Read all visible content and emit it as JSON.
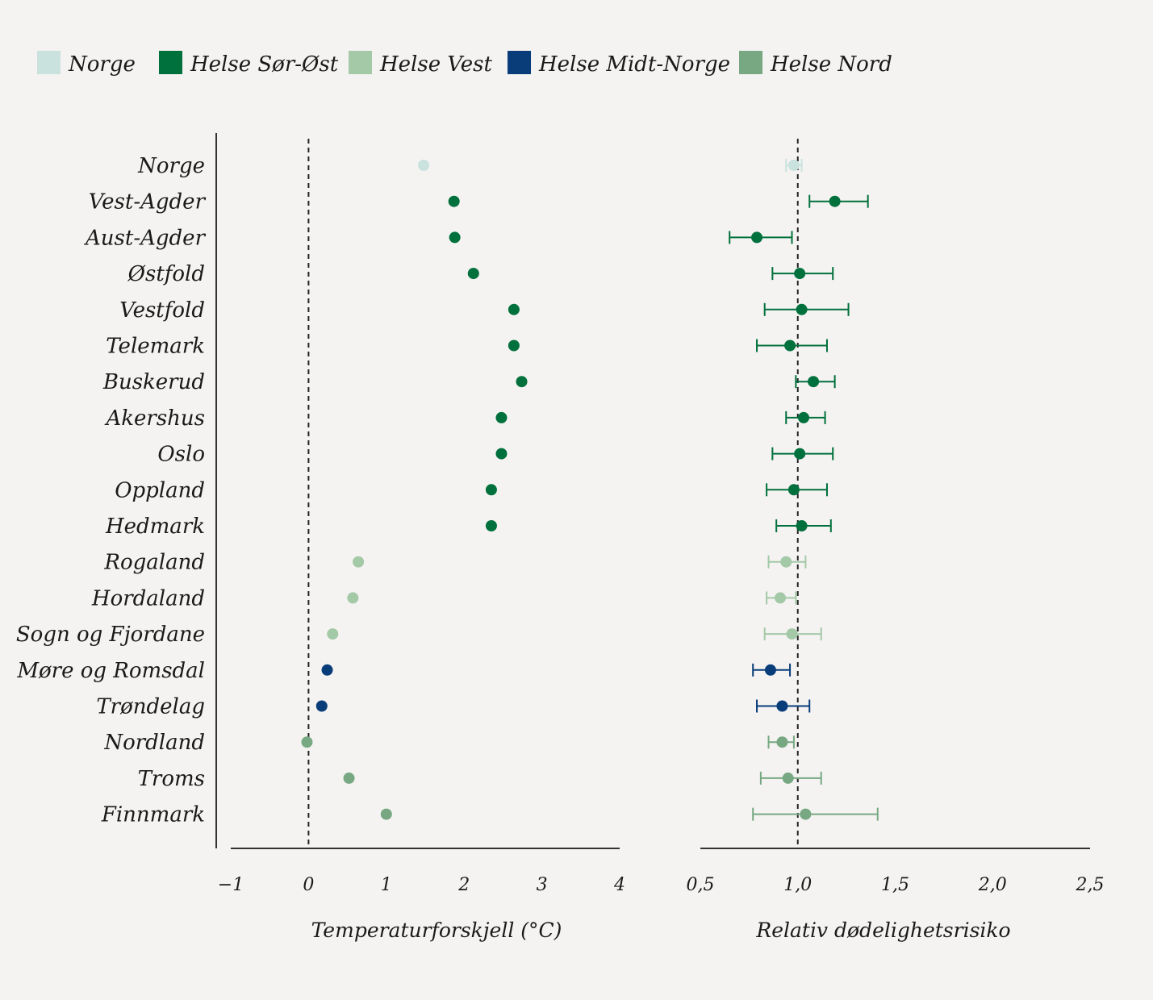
{
  "colors": {
    "Norge": "#c9e2de",
    "Helse Sør-Øst": "#00703c",
    "Helse Vest": "#a3c9a7",
    "Helse Midt-Norge": "#083d7a",
    "Helse Nord": "#77a882"
  },
  "chart_data": [
    {
      "type": "scatter",
      "legend": [
        "Norge",
        "Helse Sør-Øst",
        "Helse Vest",
        "Helse Midt-Norge",
        "Helse Nord"
      ],
      "legend_placement": "top-left",
      "categories": [
        "Norge",
        "Vest-Agder",
        "Aust-Agder",
        "Østfold",
        "Vestfold",
        "Telemark",
        "Buskerud",
        "Akershus",
        "Oslo",
        "Oppland",
        "Hedmark",
        "Rogaland",
        "Hordaland",
        "Sogn og Fjordane",
        "Møre og Romsdal",
        "Trøndelag",
        "Nordland",
        "Troms",
        "Finnmark"
      ],
      "groups": [
        "Norge",
        "Helse Sør-Øst",
        "Helse Sør-Øst",
        "Helse Sør-Øst",
        "Helse Sør-Øst",
        "Helse Sør-Øst",
        "Helse Sør-Øst",
        "Helse Sør-Øst",
        "Helse Sør-Øst",
        "Helse Sør-Øst",
        "Helse Sør-Øst",
        "Helse Vest",
        "Helse Vest",
        "Helse Vest",
        "Helse Midt-Norge",
        "Helse Midt-Norge",
        "Helse Nord",
        "Helse Nord",
        "Helse Nord"
      ],
      "xlabel": "Temperaturforskjell (°C)",
      "xlim": [
        -1,
        4
      ],
      "xticks": [
        -1,
        0,
        1,
        2,
        3,
        4
      ],
      "xtick_labels": [
        "−1",
        "0",
        "1",
        "2",
        "3",
        "4"
      ],
      "reference_line": 0,
      "values": [
        1.48,
        1.87,
        1.88,
        2.12,
        2.64,
        2.64,
        2.74,
        2.48,
        2.48,
        2.35,
        2.35,
        0.64,
        0.57,
        0.31,
        0.24,
        0.17,
        -0.02,
        0.52,
        1.0
      ]
    },
    {
      "type": "scatter",
      "error_bars": true,
      "categories": [
        "Norge",
        "Vest-Agder",
        "Aust-Agder",
        "Østfold",
        "Vestfold",
        "Telemark",
        "Buskerud",
        "Akershus",
        "Oslo",
        "Oppland",
        "Hedmark",
        "Rogaland",
        "Hordaland",
        "Sogn og Fjordane",
        "Møre og Romsdal",
        "Trøndelag",
        "Nordland",
        "Troms",
        "Finnmark"
      ],
      "xlabel": "Relativ dødelighetsrisiko",
      "xlim": [
        0.5,
        2.5
      ],
      "xticks": [
        0.5,
        1.0,
        1.5,
        2.0,
        2.5
      ],
      "xtick_labels": [
        "0,5",
        "1,0",
        "1,5",
        "2,0",
        "2,5"
      ],
      "reference_line": 1.0,
      "values": [
        0.98,
        1.19,
        0.79,
        1.01,
        1.02,
        0.96,
        1.08,
        1.03,
        1.01,
        0.98,
        1.02,
        0.94,
        0.91,
        0.97,
        0.86,
        0.92,
        0.92,
        0.95,
        1.04
      ],
      "lower": [
        0.94,
        1.06,
        0.65,
        0.87,
        0.83,
        0.79,
        0.99,
        0.94,
        0.87,
        0.84,
        0.89,
        0.85,
        0.84,
        0.83,
        0.77,
        0.79,
        0.85,
        0.81,
        0.77
      ],
      "upper": [
        1.02,
        1.36,
        0.97,
        1.18,
        1.26,
        1.15,
        1.19,
        1.14,
        1.18,
        1.15,
        1.17,
        1.04,
        0.99,
        1.12,
        0.96,
        1.06,
        0.98,
        1.12,
        1.41
      ]
    }
  ]
}
